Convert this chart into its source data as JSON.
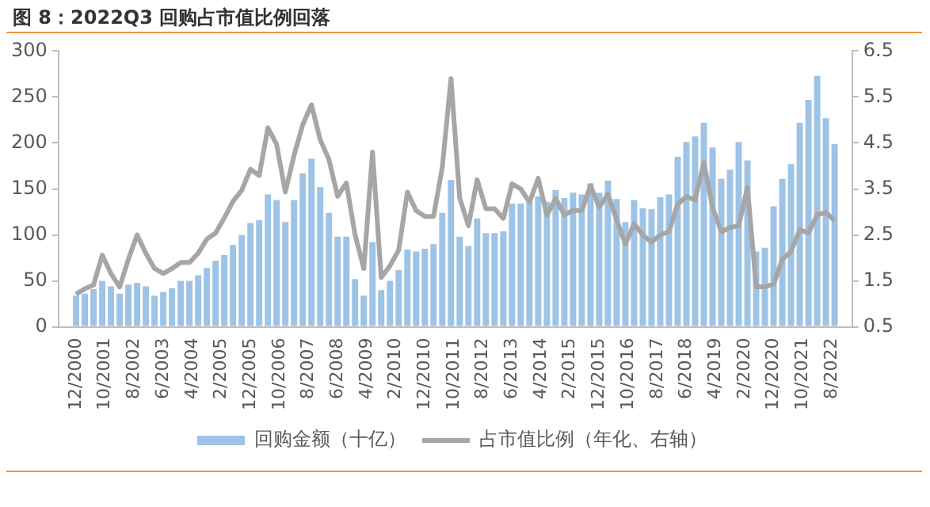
{
  "chart_data": {
    "type": "bar",
    "title": "图 8：2022Q3 回购占市值比例回落",
    "x": [
      "2000-12",
      "2001-03",
      "2001-06",
      "2001-09",
      "2001-12",
      "2002-03",
      "2002-06",
      "2002-09",
      "2002-12",
      "2003-03",
      "2003-06",
      "2003-09",
      "2003-12",
      "2004-03",
      "2004-06",
      "2004-09",
      "2004-12",
      "2005-03",
      "2005-06",
      "2005-09",
      "2005-12",
      "2006-03",
      "2006-06",
      "2006-09",
      "2006-12",
      "2007-03",
      "2007-06",
      "2007-09",
      "2007-12",
      "2008-03",
      "2008-06",
      "2008-09",
      "2008-12",
      "2009-03",
      "2009-06",
      "2009-09",
      "2009-12",
      "2010-03",
      "2010-06",
      "2010-09",
      "2010-12",
      "2011-03",
      "2011-06",
      "2011-09",
      "2011-12",
      "2012-03",
      "2012-06",
      "2012-09",
      "2012-12",
      "2013-03",
      "2013-06",
      "2013-09",
      "2013-12",
      "2014-03",
      "2014-06",
      "2014-09",
      "2014-12",
      "2015-03",
      "2015-06",
      "2015-09",
      "2015-12",
      "2016-03",
      "2016-06",
      "2016-09",
      "2016-12",
      "2017-03",
      "2017-06",
      "2017-09",
      "2017-12",
      "2018-03",
      "2018-06",
      "2018-09",
      "2018-12",
      "2019-03",
      "2019-06",
      "2019-09",
      "2019-12",
      "2020-03",
      "2020-06",
      "2020-09",
      "2020-12",
      "2021-03",
      "2021-06",
      "2021-09",
      "2021-12",
      "2022-03",
      "2022-06",
      "2022-09"
    ],
    "series": [
      {
        "name": "回购金额（十亿）",
        "color": "#9dc3e6",
        "values": [
          34,
          36,
          41,
          50,
          44,
          36,
          46,
          48,
          44,
          34,
          38,
          42,
          50,
          50,
          56,
          64,
          72,
          78,
          89,
          100,
          113,
          116,
          144,
          138,
          114,
          138,
          167,
          183,
          152,
          124,
          98,
          98,
          52,
          34,
          92,
          40,
          50,
          62,
          84,
          82,
          85,
          90,
          124,
          160,
          98,
          88,
          118,
          102,
          102,
          104,
          134,
          134,
          136,
          142,
          136,
          149,
          140,
          146,
          144,
          156,
          146,
          159,
          139,
          114,
          138,
          129,
          128,
          141,
          144,
          185,
          201,
          207,
          222,
          195,
          161,
          171,
          201,
          181,
          82,
          86,
          131,
          161,
          177,
          222,
          247,
          273,
          227,
          199
        ]
      },
      {
        "name": "占市值比例（年化、右轴）",
        "type": "line",
        "axis": "y2",
        "color": "#a6a6a6",
        "values": [
          1.21,
          1.33,
          1.41,
          2.06,
          1.66,
          1.37,
          1.97,
          2.5,
          2.1,
          1.77,
          1.66,
          1.77,
          1.9,
          1.9,
          2.1,
          2.41,
          2.54,
          2.87,
          3.23,
          3.47,
          3.93,
          3.79,
          4.83,
          4.47,
          3.43,
          4.23,
          4.9,
          5.33,
          4.57,
          4.14,
          3.34,
          3.63,
          2.5,
          1.77,
          4.3,
          1.57,
          1.83,
          2.17,
          3.43,
          3.03,
          2.9,
          2.9,
          3.97,
          5.9,
          3.3,
          2.7,
          3.7,
          3.07,
          3.07,
          2.86,
          3.61,
          3.5,
          3.21,
          3.73,
          2.93,
          3.29,
          2.94,
          3.03,
          3.03,
          3.57,
          3.1,
          3.39,
          2.83,
          2.3,
          2.74,
          2.5,
          2.34,
          2.5,
          2.57,
          3.17,
          3.33,
          3.26,
          4.07,
          3.1,
          2.57,
          2.66,
          2.7,
          3.54,
          1.37,
          1.37,
          1.43,
          1.97,
          2.14,
          2.61,
          2.54,
          2.94,
          2.99,
          2.81
        ]
      }
    ],
    "xlim": [
      "2000-11",
      "2022-10"
    ],
    "xticks": [
      {
        "value": "2000-12",
        "label": "12/2000"
      },
      {
        "value": "2001-10",
        "label": "10/2001"
      },
      {
        "value": "2002-08",
        "label": "8/2002"
      },
      {
        "value": "2003-06",
        "label": "6/2003"
      },
      {
        "value": "2004-04",
        "label": "4/2004"
      },
      {
        "value": "2005-02",
        "label": "2/2005"
      },
      {
        "value": "2005-12",
        "label": "12/2005"
      },
      {
        "value": "2006-10",
        "label": "10/2006"
      },
      {
        "value": "2007-08",
        "label": "8/2007"
      },
      {
        "value": "2008-06",
        "label": "6/2008"
      },
      {
        "value": "2009-04",
        "label": "4/2009"
      },
      {
        "value": "2010-02",
        "label": "2/2010"
      },
      {
        "value": "2010-12",
        "label": "12/2010"
      },
      {
        "value": "2011-10",
        "label": "10/2011"
      },
      {
        "value": "2012-08",
        "label": "8/2012"
      },
      {
        "value": "2013-06",
        "label": "6/2013"
      },
      {
        "value": "2014-04",
        "label": "4/2014"
      },
      {
        "value": "2015-02",
        "label": "2/2015"
      },
      {
        "value": "2015-12",
        "label": "12/2015"
      },
      {
        "value": "2016-10",
        "label": "10/2016"
      },
      {
        "value": "2017-08",
        "label": "8/2017"
      },
      {
        "value": "2018-06",
        "label": "6/2018"
      },
      {
        "value": "2019-04",
        "label": "4/2019"
      },
      {
        "value": "2020-02",
        "label": "2/2020"
      },
      {
        "value": "2020-12",
        "label": "12/2020"
      },
      {
        "value": "2021-10",
        "label": "10/2021"
      },
      {
        "value": "2022-08",
        "label": "8/2022"
      }
    ],
    "ylim": [
      0,
      300
    ],
    "yticks": [
      0,
      50,
      100,
      150,
      200,
      250,
      300
    ],
    "y2lim": [
      0.5,
      6.5
    ],
    "y2ticks": [
      0.5,
      1.5,
      2.5,
      3.5,
      4.5,
      5.5,
      6.5
    ],
    "grid": false,
    "legend": "bottom",
    "marker": "none"
  }
}
